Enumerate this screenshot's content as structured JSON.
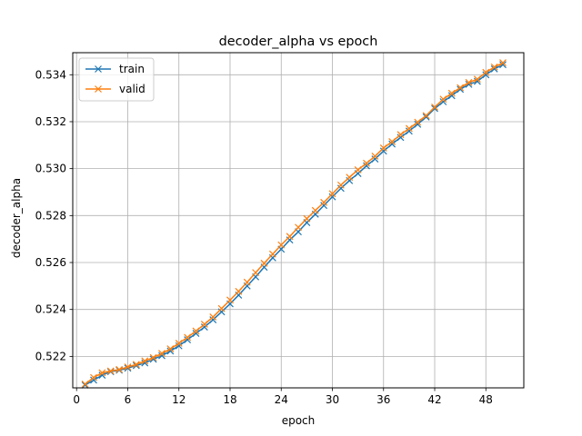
{
  "chart_data": {
    "type": "line",
    "title": "decoder_alpha vs epoch",
    "xlabel": "epoch",
    "ylabel": "decoder_alpha",
    "xlim": [
      -0.45,
      52.45
    ],
    "ylim": [
      0.52066,
      0.53494
    ],
    "xticks": [
      0,
      6,
      12,
      18,
      24,
      30,
      36,
      42,
      48
    ],
    "yticks": [
      0.522,
      0.524,
      0.526,
      0.528,
      0.53,
      0.532,
      0.534
    ],
    "grid": true,
    "legend_position": "top-left",
    "x": [
      1,
      2,
      3,
      4,
      5,
      6,
      7,
      8,
      9,
      10,
      11,
      12,
      13,
      14,
      15,
      16,
      17,
      18,
      19,
      20,
      21,
      22,
      23,
      24,
      25,
      26,
      27,
      28,
      29,
      30,
      31,
      32,
      33,
      34,
      35,
      36,
      37,
      38,
      39,
      40,
      41,
      42,
      43,
      44,
      45,
      46,
      47,
      48,
      49,
      50
    ],
    "series": [
      {
        "name": "train",
        "color": "#1f77b4",
        "marker": "x",
        "values": [
          0.52078,
          0.52099,
          0.5212,
          0.52135,
          0.52141,
          0.5215,
          0.52161,
          0.52172,
          0.52188,
          0.52203,
          0.52223,
          0.52245,
          0.52271,
          0.52298,
          0.52325,
          0.52356,
          0.5239,
          0.52424,
          0.52461,
          0.525,
          0.52539,
          0.5258,
          0.5262,
          0.52657,
          0.52696,
          0.52731,
          0.5277,
          0.52806,
          0.52843,
          0.5288,
          0.52916,
          0.52949,
          0.52979,
          0.53012,
          0.53041,
          0.53075,
          0.53105,
          0.53133,
          0.5316,
          0.53189,
          0.5322,
          0.53256,
          0.53285,
          0.53311,
          0.53338,
          0.53359,
          0.53372,
          0.534,
          0.53425,
          0.53443
        ]
      },
      {
        "name": "valid",
        "color": "#ff7f0e",
        "marker": "x",
        "values": [
          0.52082,
          0.5211,
          0.5213,
          0.52138,
          0.52144,
          0.52155,
          0.52166,
          0.52181,
          0.52195,
          0.52213,
          0.52232,
          0.52256,
          0.52281,
          0.52308,
          0.52337,
          0.52368,
          0.52404,
          0.5244,
          0.52477,
          0.52516,
          0.52557,
          0.52597,
          0.52636,
          0.52675,
          0.52711,
          0.5275,
          0.52787,
          0.52822,
          0.52856,
          0.52893,
          0.5293,
          0.52963,
          0.52995,
          0.53023,
          0.53053,
          0.53088,
          0.53115,
          0.53145,
          0.53171,
          0.53198,
          0.53226,
          0.53262,
          0.53296,
          0.53321,
          0.53345,
          0.53367,
          0.53381,
          0.5341,
          0.53433,
          0.53451
        ]
      }
    ]
  }
}
